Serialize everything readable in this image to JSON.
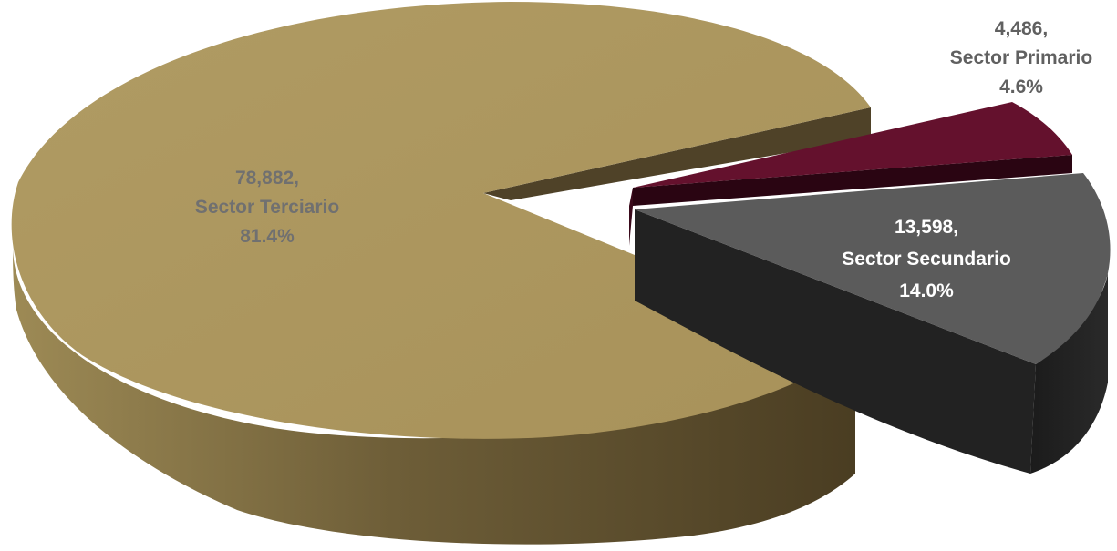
{
  "chart_data": {
    "type": "pie",
    "style": "3d-exploded",
    "slices": [
      {
        "name": "Sector Terciario",
        "value": 78882,
        "value_label": "78,882,",
        "percent_label": "81.4%",
        "color": "#AD9860",
        "side_color": "#5A4A2A",
        "label_color": "#707070"
      },
      {
        "name": "Sector Primario",
        "value": 4486,
        "value_label": "4,486,",
        "percent_label": "4.6%",
        "color": "#64112D",
        "side_color": "#2A0512",
        "label_color": "#606060"
      },
      {
        "name": "Sector Secundario",
        "value": 13598,
        "value_label": "13,598,",
        "percent_label": "14.0%",
        "color": "#5B5B5B",
        "side_color": "#1E1E1E",
        "label_color": "#FFFFFF"
      }
    ]
  }
}
